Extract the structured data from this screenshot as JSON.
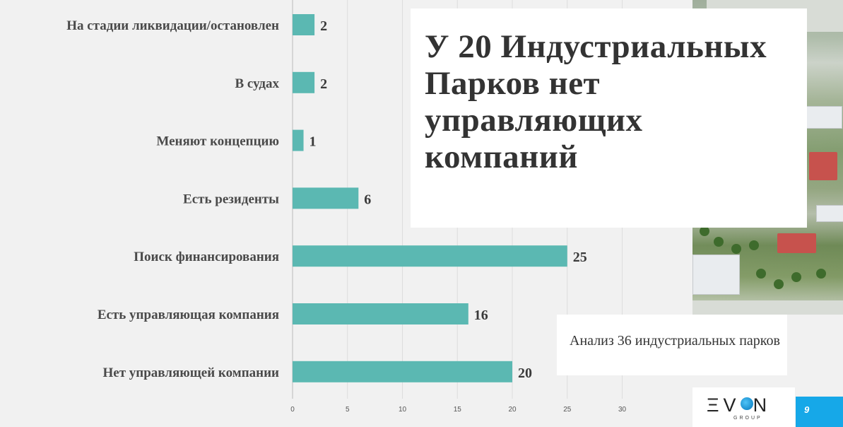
{
  "slide": {
    "title": "У 20 Индустриальных Парков нет управляющих компаний",
    "note": "Анализ 36 индустриальных парков",
    "logo": {
      "brand_pre": "ΞV",
      "brand_post": "N",
      "sub": "GROUP"
    },
    "page_number": "9",
    "colors": {
      "bar": "#5bb8b2",
      "page_badge": "#16a8e8",
      "background": "#f1f1f1"
    }
  },
  "chart_data": {
    "type": "bar",
    "orientation": "horizontal",
    "categories": [
      "На стадии ликвидации/остановлен",
      "В судах",
      "Меняют концепцию",
      "Есть резиденты",
      "Поиск финансирования",
      "Есть управляющая компания",
      "Нет управляющей компании"
    ],
    "values": [
      2,
      2,
      1,
      6,
      25,
      16,
      20
    ],
    "xlim": [
      0,
      30
    ],
    "xticks": [
      "0",
      "5",
      "10",
      "15",
      "20",
      "25",
      "30"
    ],
    "grid": "vertical",
    "legend": "none"
  }
}
